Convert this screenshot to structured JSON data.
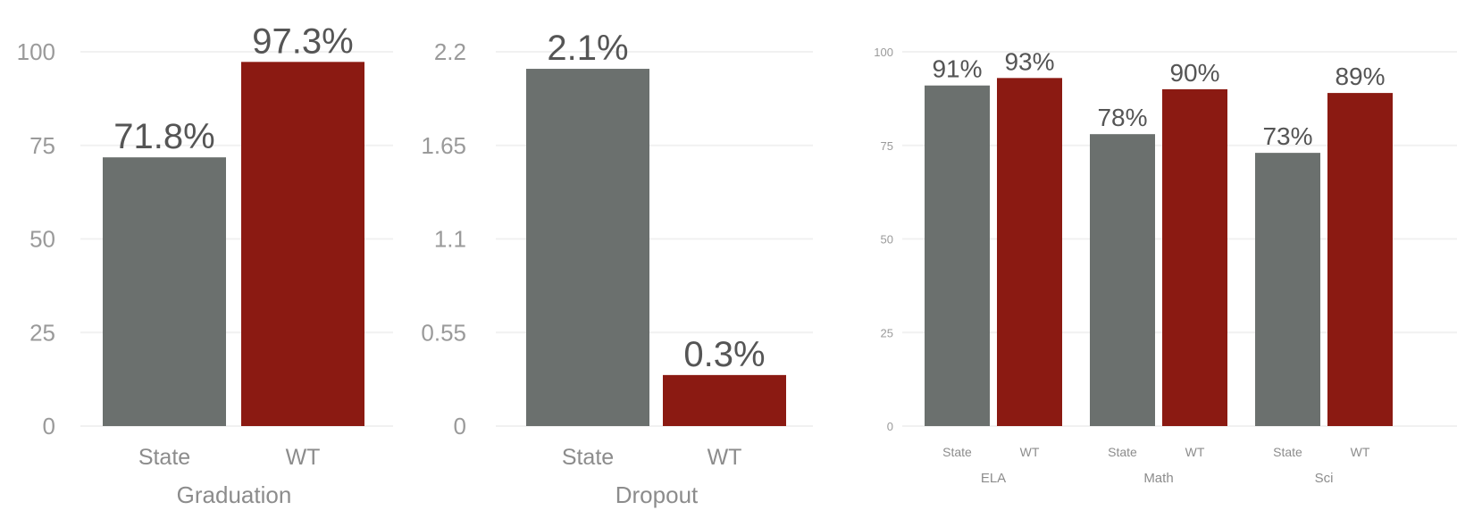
{
  "chart_data": [
    {
      "type": "bar",
      "categories": [
        "State",
        "WT"
      ],
      "values": [
        71.8,
        97.3
      ],
      "value_labels": [
        "71.8%",
        "97.3%"
      ],
      "ylim": [
        0,
        100
      ],
      "yticks": [
        "0",
        "25",
        "50",
        "75",
        "100"
      ],
      "ytick_values": [
        0,
        25,
        50,
        75,
        100
      ],
      "xlabel": "Graduation",
      "grid": true,
      "colors": [
        "#6b706e",
        "#8b1a12"
      ]
    },
    {
      "type": "bar",
      "categories": [
        "State",
        "WT"
      ],
      "values": [
        2.1,
        0.3
      ],
      "value_labels": [
        "2.1%",
        "0.3%"
      ],
      "ylim": [
        0,
        2.2
      ],
      "yticks": [
        "0",
        "0.55",
        "1.1",
        "1.65",
        "2.2"
      ],
      "ytick_values": [
        0,
        0.55,
        1.1,
        1.65,
        2.2
      ],
      "xlabel": "Dropout",
      "grid": true,
      "colors": [
        "#6b706e",
        "#8b1a12"
      ]
    },
    {
      "type": "bar",
      "groups": [
        {
          "name": "ELA",
          "categories": [
            "State",
            "WT"
          ],
          "values": [
            91,
            93
          ],
          "value_labels": [
            "91%",
            "93%"
          ]
        },
        {
          "name": "Math",
          "categories": [
            "State",
            "WT"
          ],
          "values": [
            78,
            90
          ],
          "value_labels": [
            "78%",
            "90%"
          ]
        },
        {
          "name": "Sci",
          "categories": [
            "State",
            "WT"
          ],
          "values": [
            73,
            89
          ],
          "value_labels": [
            "73%",
            "89%"
          ]
        }
      ],
      "ylim": [
        0,
        100
      ],
      "yticks": [
        "0",
        "25",
        "50",
        "75",
        "100"
      ],
      "ytick_values": [
        0,
        25,
        50,
        75,
        100
      ],
      "grid": true,
      "colors": [
        "#6b706e",
        "#8b1a12"
      ]
    }
  ]
}
